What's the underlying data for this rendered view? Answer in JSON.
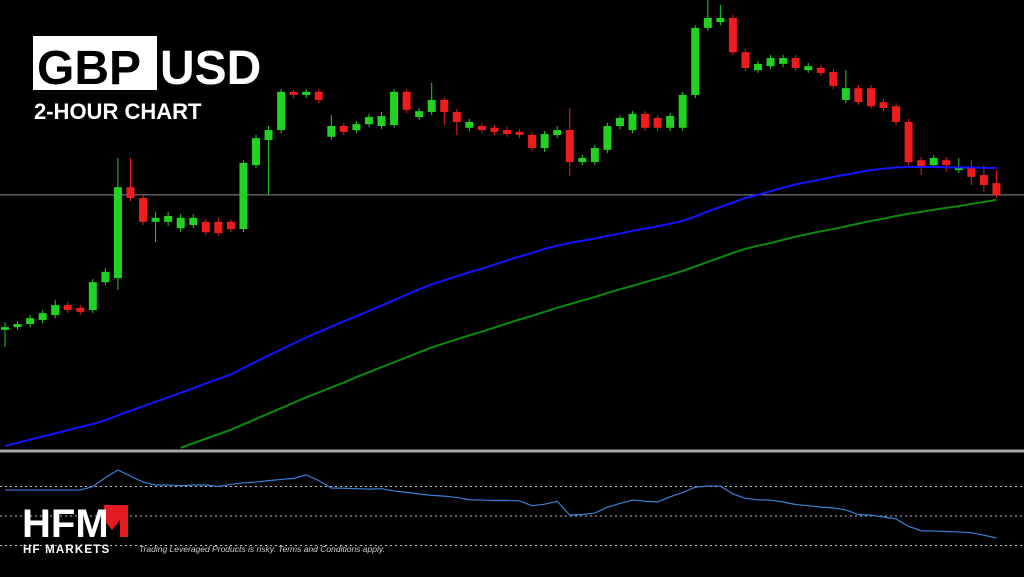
{
  "header": {
    "symbol_base": "GBP",
    "symbol_quote": "USD",
    "subtitle": "2-HOUR CHART"
  },
  "footer": {
    "logo": "HFM",
    "brand": "HF MARKETS",
    "disclaimer": "Trading Leveraged Products is risky. Terms and Conditions apply."
  },
  "chart_data": {
    "type": "candlestick",
    "ylim": [
      0,
      100
    ],
    "up_color": "#22d122",
    "down_color": "#ee1c1c",
    "open": [
      26.7,
      27.3,
      28.0,
      28.9,
      30.0,
      32.2,
      31.6,
      31.1,
      37.3,
      38.2,
      58.4,
      56.0,
      50.7,
      50.7,
      49.3,
      50.0,
      50.7,
      50.7,
      50.7,
      49.1,
      63.3,
      68.9,
      71.1,
      79.6,
      78.9,
      79.6,
      69.6,
      72.0,
      71.1,
      72.4,
      72.0,
      72.2,
      79.6,
      74.0,
      75.1,
      77.8,
      75.1,
      71.6,
      72.0,
      71.6,
      71.1,
      70.7,
      70.0,
      67.1,
      70.0,
      71.1,
      64.0,
      64.0,
      66.7,
      72.0,
      71.1,
      74.7,
      73.8,
      71.6,
      71.6,
      78.9,
      93.8,
      95.1,
      96.0,
      88.4,
      84.4,
      85.3,
      85.8,
      87.1,
      84.4,
      84.9,
      84.0,
      77.8,
      80.4,
      80.4,
      77.3,
      76.4,
      72.9,
      64.4,
      63.3,
      64.4,
      62.2,
      62.7,
      61.1,
      59.3
    ],
    "high": [
      28.4,
      28.7,
      30.0,
      31.1,
      33.3,
      32.9,
      32.2,
      38.0,
      40.4,
      64.9,
      64.9,
      56.7,
      52.9,
      52.9,
      52.4,
      52.4,
      51.3,
      51.6,
      51.3,
      64.4,
      70.0,
      72.0,
      80.2,
      80.0,
      80.2,
      80.2,
      74.4,
      72.7,
      73.1,
      74.7,
      75.1,
      80.2,
      80.2,
      76.0,
      81.6,
      78.4,
      75.8,
      73.6,
      72.7,
      72.2,
      71.8,
      71.3,
      70.7,
      70.9,
      72.0,
      76.0,
      65.6,
      67.8,
      72.7,
      74.4,
      75.3,
      75.3,
      74.4,
      74.9,
      79.6,
      94.4,
      100,
      98.9,
      96.7,
      89.1,
      86.4,
      87.8,
      87.8,
      87.8,
      86.0,
      85.6,
      84.7,
      84.4,
      81.1,
      81.1,
      78.0,
      77.1,
      73.6,
      65.1,
      65.6,
      65.1,
      64.9,
      64.4,
      63.3,
      62.2
    ],
    "low": [
      22.9,
      26.7,
      27.3,
      28.2,
      29.3,
      30.4,
      30.0,
      30.4,
      36.7,
      35.6,
      55.3,
      50.0,
      46.2,
      49.8,
      48.4,
      49.3,
      47.8,
      47.6,
      48.4,
      48.4,
      62.7,
      56.7,
      70.4,
      78.2,
      78.2,
      77.1,
      68.9,
      70.0,
      70.4,
      71.8,
      71.3,
      71.6,
      74.9,
      73.3,
      74.4,
      72.2,
      70.0,
      70.9,
      70.4,
      70.0,
      69.6,
      69.3,
      66.4,
      66.2,
      69.3,
      60.9,
      63.3,
      63.3,
      66.0,
      71.3,
      70.4,
      70.9,
      70.9,
      70.9,
      70.9,
      78.2,
      93.1,
      94.4,
      87.8,
      84.2,
      83.8,
      84.7,
      85.1,
      84.2,
      83.8,
      83.1,
      80.2,
      77.1,
      76.7,
      75.8,
      75.3,
      72.2,
      63.3,
      61.1,
      62.7,
      61.8,
      61.6,
      58.9,
      57.3,
      56.0
    ],
    "close": [
      27.3,
      28.0,
      29.3,
      30.4,
      32.2,
      31.1,
      30.7,
      37.3,
      39.6,
      58.4,
      56.0,
      50.7,
      51.6,
      52.0,
      51.6,
      51.6,
      48.4,
      48.2,
      49.1,
      63.8,
      69.3,
      71.1,
      79.6,
      78.9,
      79.6,
      77.8,
      72.0,
      70.7,
      72.4,
      74.0,
      74.2,
      79.6,
      75.6,
      75.3,
      77.8,
      75.1,
      72.9,
      72.9,
      71.1,
      70.7,
      70.2,
      70.0,
      67.1,
      70.2,
      71.1,
      64.0,
      64.9,
      67.1,
      72.0,
      73.8,
      74.7,
      71.6,
      71.6,
      74.2,
      78.9,
      93.8,
      96.0,
      96.0,
      88.4,
      84.9,
      85.8,
      87.1,
      87.1,
      84.9,
      85.3,
      83.8,
      80.9,
      80.4,
      77.3,
      76.4,
      76.0,
      72.9,
      64.0,
      62.9,
      64.9,
      63.3,
      62.9,
      60.7,
      58.9,
      56.7
    ],
    "price_line": 56.7,
    "price_line_color": "#8c8c8c",
    "series": [
      {
        "type": "line",
        "color": "#1414ff",
        "values": [
          0.9,
          1.6,
          2.3,
          3.0,
          3.7,
          4.4,
          5.1,
          5.8,
          6.6,
          7.7,
          8.7,
          9.7,
          10.7,
          11.7,
          12.7,
          13.7,
          14.8,
          15.8,
          16.8,
          18.2,
          19.6,
          21.0,
          22.3,
          23.7,
          25.0,
          26.2,
          27.4,
          28.6,
          29.7,
          30.9,
          32.1,
          33.3,
          34.5,
          35.7,
          36.8,
          37.7,
          38.6,
          39.5,
          40.3,
          41.2,
          42.1,
          43.0,
          43.8,
          44.7,
          45.4,
          46.0,
          46.5,
          47.0,
          47.6,
          48.1,
          48.7,
          49.2,
          49.7,
          50.3,
          50.9,
          51.9,
          53.0,
          54.0,
          55.0,
          56.0,
          56.7,
          57.5,
          58.3,
          59.0,
          59.6,
          60.1,
          60.7,
          61.2,
          61.7,
          62.2,
          62.5,
          62.8,
          62.9,
          62.9,
          62.9,
          62.8,
          62.8,
          62.8,
          62.7,
          62.7
        ]
      },
      {
        "type": "line",
        "color": "#0b8a0b",
        "values": [
          null,
          null,
          null,
          null,
          null,
          null,
          null,
          null,
          null,
          null,
          null,
          null,
          null,
          null,
          0.5,
          1.5,
          2.5,
          3.5,
          4.5,
          5.7,
          6.9,
          8.1,
          9.3,
          10.5,
          11.7,
          12.8,
          13.9,
          15.0,
          16.2,
          17.3,
          18.4,
          19.5,
          20.6,
          21.7,
          22.8,
          23.7,
          24.6,
          25.5,
          26.3,
          27.2,
          28.1,
          29.0,
          29.8,
          30.7,
          31.6,
          32.4,
          33.2,
          34.0,
          34.9,
          35.7,
          36.5,
          37.3,
          38.1,
          38.9,
          39.8,
          40.8,
          41.8,
          42.8,
          43.8,
          44.7,
          45.4,
          46.0,
          46.7,
          47.4,
          48.0,
          48.6,
          49.1,
          49.7,
          50.3,
          50.9,
          51.4,
          52.0,
          52.5,
          52.9,
          53.4,
          53.8,
          54.2,
          54.7,
          55.1,
          55.6
        ]
      }
    ],
    "indicator": {
      "type": "line",
      "color": "#3b7fd6",
      "ylim": [
        0,
        100
      ],
      "levels": [
        70,
        50,
        30
      ],
      "values": [
        67.6,
        67.6,
        67.6,
        67.6,
        67.6,
        67.6,
        67.6,
        70,
        76,
        81.2,
        77,
        73,
        71,
        71,
        70.5,
        71,
        71,
        70,
        71.5,
        72.5,
        73,
        74,
        74.8,
        75.5,
        77.8,
        74,
        69,
        68.8,
        68.5,
        68.2,
        68.5,
        67,
        66,
        65,
        64,
        63.5,
        62.5,
        61,
        60.8,
        60.5,
        60.5,
        60.2,
        57,
        58,
        60,
        50.7,
        51,
        52,
        56,
        58.5,
        60.8,
        60,
        59.5,
        63,
        66,
        69.5,
        70.3,
        70.3,
        65,
        62,
        61,
        60.8,
        59.5,
        57.8,
        57,
        56,
        55.5,
        54.1,
        51,
        50.5,
        49.3,
        48,
        43,
        40,
        39.8,
        39.5,
        39.2,
        38.7,
        37,
        35.1
      ]
    }
  }
}
